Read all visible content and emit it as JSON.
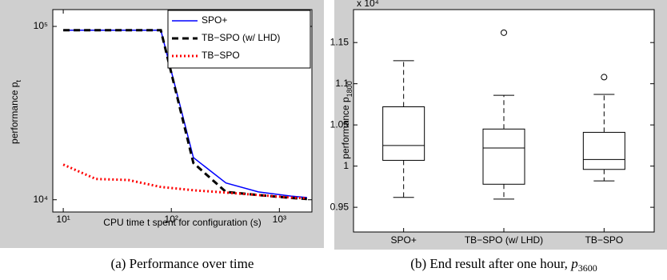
{
  "chart_data": [
    {
      "type": "line",
      "log_x": true,
      "log_y": true,
      "xlabel": "CPU time t spent for configuration (s)",
      "ylabel": "performance p",
      "ylabel_sub": "t",
      "caption": "(a) Performance over time",
      "x": [
        10,
        20,
        40,
        80,
        160,
        320,
        640,
        1280,
        1800
      ],
      "series": [
        {
          "name": "SPO+",
          "color": "#0000ff",
          "linestyle": "solid",
          "values": [
            95000,
            95000,
            95000,
            95000,
            17500,
            12500,
            11100,
            10500,
            10300
          ]
        },
        {
          "name": "TB−SPO (w/ LHD)",
          "color": "#000000",
          "linestyle": "dashed",
          "values": [
            95000,
            95000,
            95000,
            95000,
            16300,
            11100,
            10650,
            10250,
            10100
          ]
        },
        {
          "name": "TB−SPO",
          "color": "#ff0000",
          "linestyle": "dotted",
          "values": [
            15960,
            13180,
            13000,
            11850,
            11350,
            11000,
            10650,
            10300,
            10200
          ]
        }
      ],
      "xlim": [
        8,
        2000
      ],
      "ylim": [
        8500,
        125000
      ],
      "xticks": [
        {
          "value": 10,
          "label": "10¹"
        },
        {
          "value": 100,
          "label": "10²"
        },
        {
          "value": 1000,
          "label": "10³"
        }
      ],
      "yticks": [
        {
          "value": 10000,
          "label": "10⁴"
        },
        {
          "value": 100000,
          "label": "10⁵"
        }
      ],
      "legend": "upper right"
    },
    {
      "type": "box",
      "ylabel": "performance p",
      "ylabel_sub": "1800",
      "y_multiplier": "x 10⁴",
      "caption": "(b) End result after one hour,",
      "caption_symbol": "p",
      "caption_sub": "3600",
      "categories": [
        "SPO+",
        "TB−SPO (w/ LHD)",
        "TB−SPO"
      ],
      "boxes": [
        {
          "whisker_low": 0.962,
          "q1": 1.007,
          "median": 1.025,
          "q3": 1.072,
          "whisker_high": 1.128,
          "outliers": []
        },
        {
          "whisker_low": 0.96,
          "q1": 0.978,
          "median": 1.022,
          "q3": 1.045,
          "whisker_high": 1.086,
          "outliers": [
            1.162
          ]
        },
        {
          "whisker_low": 0.982,
          "q1": 0.996,
          "median": 1.008,
          "q3": 1.041,
          "whisker_high": 1.087,
          "outliers": [
            1.108
          ]
        }
      ],
      "color": "#000000",
      "ylim": [
        0.92,
        1.19
      ],
      "yticks": [
        0.95,
        1,
        1.05,
        1.1,
        1.15
      ]
    }
  ]
}
